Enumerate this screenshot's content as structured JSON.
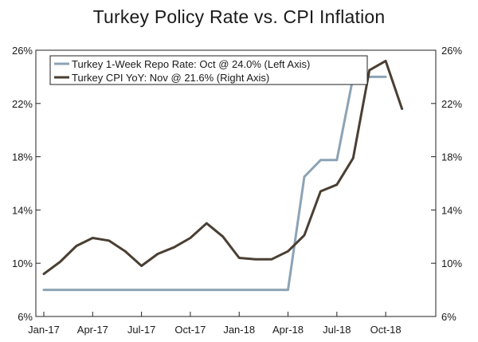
{
  "chart_data": {
    "type": "line",
    "title": "Turkey Policy Rate vs. CPI Inflation",
    "x_labels": [
      "Jan-17",
      "Apr-17",
      "Jul-17",
      "Oct-17",
      "Jan-18",
      "Apr-18",
      "Jul-18",
      "Oct-18"
    ],
    "x_label_month_index": [
      0,
      3,
      6,
      9,
      12,
      15,
      18,
      21
    ],
    "x_range_months": [
      0,
      23
    ],
    "left_axis": {
      "ylim": [
        6,
        26
      ],
      "ticks": [
        6,
        10,
        14,
        18,
        22,
        26
      ],
      "tick_labels": [
        "6%",
        "10%",
        "14%",
        "18%",
        "22%",
        "26%"
      ]
    },
    "right_axis": {
      "ylim": [
        6,
        26
      ],
      "ticks": [
        6,
        10,
        14,
        18,
        22,
        26
      ],
      "tick_labels": [
        "6%",
        "10%",
        "14%",
        "18%",
        "22%",
        "26%"
      ]
    },
    "series": [
      {
        "name": "Turkey 1-Week Repo Rate: Oct @ 24.0% (Left Axis)",
        "axis": "left",
        "color": "#8ca3b5",
        "month_index": [
          0,
          1,
          2,
          3,
          4,
          5,
          6,
          7,
          8,
          9,
          10,
          11,
          12,
          13,
          14,
          15,
          16,
          17,
          18,
          19,
          20,
          21
        ],
        "values": [
          8.0,
          8.0,
          8.0,
          8.0,
          8.0,
          8.0,
          8.0,
          8.0,
          8.0,
          8.0,
          8.0,
          8.0,
          8.0,
          8.0,
          8.0,
          8.0,
          16.5,
          17.75,
          17.75,
          24.0,
          24.0,
          24.0
        ]
      },
      {
        "name": "Turkey CPI YoY: Nov @ 21.6%  (Right Axis)",
        "axis": "right",
        "color": "#4a3f33",
        "month_index": [
          0,
          1,
          2,
          3,
          4,
          5,
          6,
          7,
          8,
          9,
          10,
          11,
          12,
          13,
          14,
          15,
          16,
          17,
          18,
          19,
          20,
          21,
          22
        ],
        "values": [
          9.2,
          10.1,
          11.3,
          11.9,
          11.7,
          10.9,
          9.8,
          10.7,
          11.2,
          11.9,
          13.0,
          12.0,
          10.4,
          10.3,
          10.3,
          10.9,
          12.1,
          15.4,
          15.9,
          17.9,
          24.5,
          25.2,
          21.6
        ]
      }
    ],
    "legend_position": "top-left"
  }
}
